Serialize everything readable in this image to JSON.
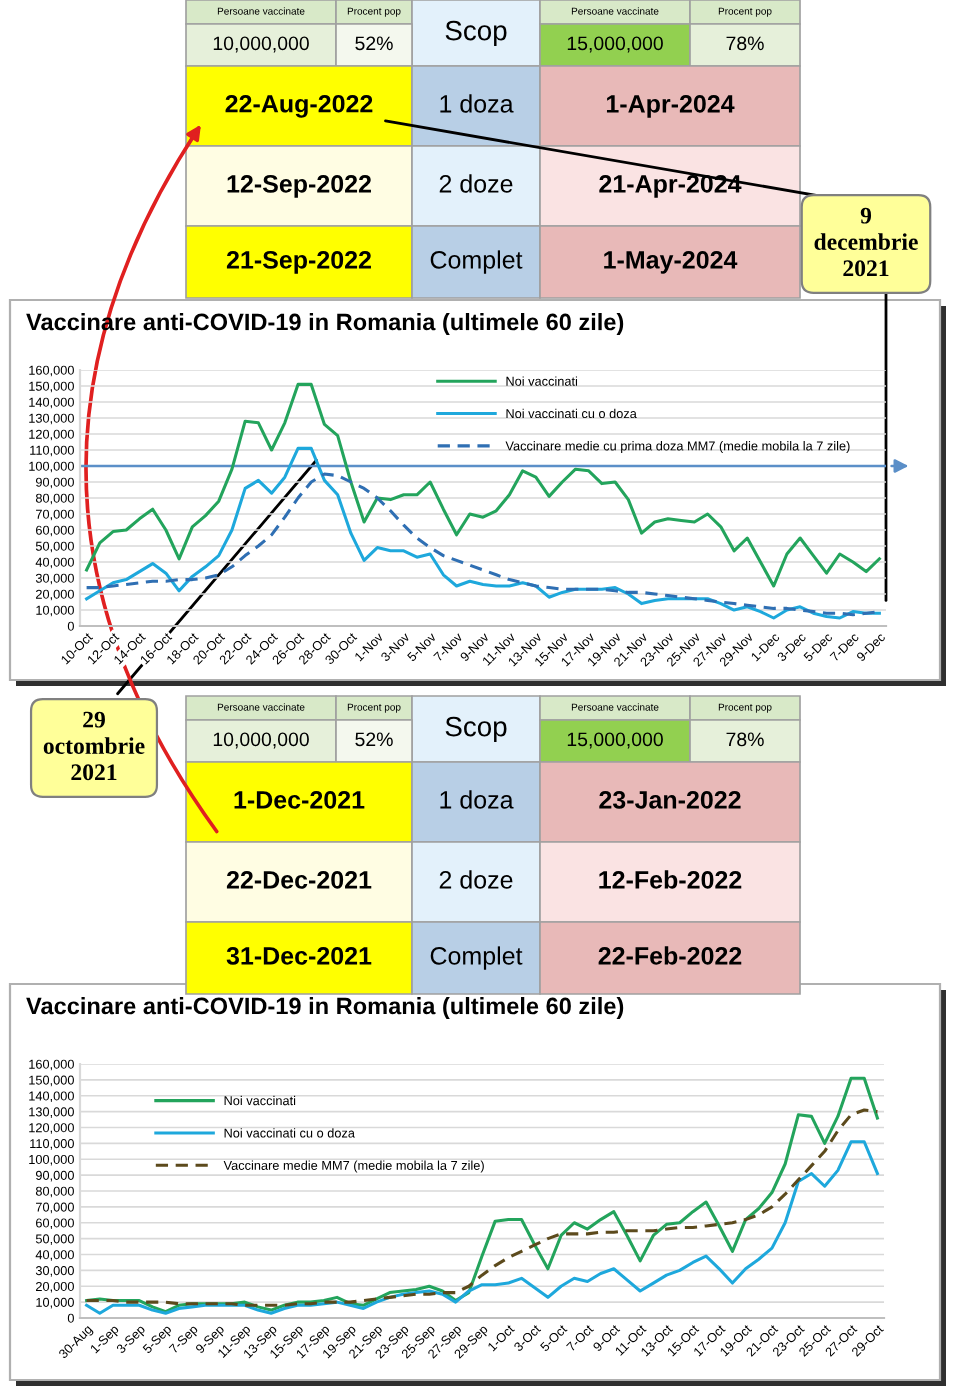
{
  "chart_data": [
    {
      "type": "other",
      "annotations": [
        "Persoane vaccinate",
        "Procent pop",
        "Scop",
        "Persoane vaccinate",
        "Procent pop",
        "10,000,000",
        "52%",
        "15,000,000",
        "78%",
        "22-Aug-2022",
        "1 doza",
        "1-Apr-2024",
        "12-Sep-2022",
        "2 doze",
        "21-Apr-2024",
        "21-Sep-2022",
        "Complet",
        "1-May-2024",
        "9\ndecembrie\n2021"
      ],
      "colors": [
        "#d8e9c8",
        "#d8e9c8",
        "#e3f1fb",
        "#d8e9c8",
        "#d8e9c8",
        "#e6f0da",
        "#f4f8ee",
        "#92d050",
        "#e6f0da",
        "#ffff00",
        "#b8cfe6",
        "#e8b9b8",
        "#fffde3",
        "#e3f1fb",
        "#fae3e3",
        "#ffff00",
        "#b8cfe6",
        "#e8b9b8",
        "#ffff99"
      ]
    },
    {
      "type": "line",
      "title": "Vaccinare anti-COVID-19 in Romania (ultimele 60 zile)",
      "categories": [
        "10-Oct",
        null,
        "12-Oct",
        null,
        "14-Oct",
        null,
        "16-Oct",
        null,
        "18-Oct",
        null,
        "20-Oct",
        null,
        "22-Oct",
        null,
        "24-Oct",
        null,
        "26-Oct",
        null,
        "28-Oct",
        null,
        "30-Oct",
        null,
        "1-Nov",
        null,
        "3-Nov",
        null,
        "5-Nov",
        null,
        "7-Nov",
        null,
        "9-Nov",
        null,
        "11-Nov",
        null,
        "13-Nov",
        null,
        "15-Nov",
        null,
        "17-Nov",
        null,
        "19-Nov",
        null,
        "21-Nov",
        null,
        "23-Nov",
        null,
        "25-Nov",
        null,
        "27-Nov",
        null,
        "29-Nov",
        null,
        "1-Dec",
        null,
        "3-Dec",
        null,
        "5-Dec",
        null,
        "7-Dec",
        null,
        "9-Dec"
      ],
      "series": [
        {
          "name": "Noi vaccinati",
          "color": "#23a45c",
          "values": [
            35000,
            52000,
            59000,
            60000,
            67000,
            73000,
            60000,
            42000,
            62000,
            69000,
            78000,
            98000,
            128000,
            127000,
            110000,
            127000,
            151000,
            151000,
            126000,
            119000,
            90000,
            65000,
            80000,
            79000,
            82000,
            82000,
            90000,
            73000,
            57000,
            70000,
            68000,
            72000,
            82000,
            97000,
            93000,
            81000,
            90000,
            98000,
            97000,
            89000,
            90000,
            79000,
            58000,
            65000,
            67000,
            66000,
            65000,
            70000,
            62000,
            47000,
            55000,
            40000,
            25000,
            45000,
            55000,
            44000,
            33000,
            45000,
            40000,
            34000,
            42000
          ]
        },
        {
          "name": "Noi vaccinati cu o doza",
          "color": "#1ea8dc",
          "values": [
            17000,
            22000,
            27000,
            29000,
            34000,
            39000,
            33000,
            22000,
            31000,
            37000,
            44000,
            60000,
            86000,
            91000,
            83000,
            93000,
            111000,
            111000,
            91000,
            82000,
            58000,
            41000,
            49000,
            47000,
            47000,
            43000,
            45000,
            32000,
            25000,
            28000,
            26000,
            25000,
            25000,
            27000,
            25000,
            18000,
            21000,
            23000,
            23000,
            23000,
            24000,
            20000,
            14000,
            16000,
            17000,
            17000,
            17000,
            17000,
            14000,
            10000,
            12000,
            9000,
            5000,
            10000,
            12000,
            8000,
            6000,
            5000,
            9000,
            8000,
            8000
          ]
        },
        {
          "name": "Vaccinare medie cu prima doza MM7 (medie mobila la 7 zile)",
          "color": "#2f6fb3",
          "line_style": "dashed",
          "values": [
            24000,
            24000,
            25000,
            26000,
            27000,
            28000,
            28000,
            29000,
            29000,
            30000,
            32000,
            37000,
            44000,
            50000,
            57000,
            68000,
            80000,
            90000,
            95000,
            94000,
            90000,
            86000,
            80000,
            72000,
            63000,
            55000,
            49000,
            44000,
            41000,
            38000,
            35000,
            32000,
            29000,
            27000,
            25000,
            24000,
            23000,
            23000,
            23000,
            23000,
            22000,
            21000,
            21000,
            20000,
            19000,
            18000,
            17000,
            16000,
            15000,
            14000,
            13000,
            12000,
            11000,
            11000,
            10000,
            9000,
            8000,
            8000,
            7000,
            8000,
            9000
          ]
        }
      ],
      "ylim": [
        0,
        160000
      ],
      "yticks": [
        0,
        {
          "value": 10000,
          "label": "10,000"
        },
        {
          "value": 20000,
          "label": "20,000"
        },
        {
          "value": 30000,
          "label": "30,000"
        },
        {
          "value": 40000,
          "label": "40,000"
        },
        {
          "value": 50000,
          "label": "50,000"
        },
        {
          "value": 60000,
          "label": "60,000"
        },
        {
          "value": 70000,
          "label": "70,000"
        },
        {
          "value": 80000,
          "label": "80,000"
        },
        {
          "value": 90000,
          "label": "90,000"
        },
        {
          "value": 100000,
          "label": "100,000"
        },
        {
          "value": 110000,
          "label": "110,000"
        },
        {
          "value": 120000,
          "label": "120,000"
        },
        {
          "value": 130000,
          "label": "130,000"
        },
        {
          "value": 140000,
          "label": "140,000"
        },
        {
          "value": 150000,
          "label": "150,000"
        },
        {
          "value": 160000,
          "label": "160,000"
        }
      ],
      "ref_lines": [
        {
          "axis": "y",
          "value": 100000,
          "color": "#5b8fc8"
        }
      ],
      "grid": "y",
      "legend": "top right",
      "line_style": "solid",
      "marker": "none"
    },
    {
      "type": "other",
      "annotations": [
        "Persoane vaccinate",
        "Procent pop",
        "Scop",
        "Persoane vaccinate",
        "Procent pop",
        "10,000,000",
        "52%",
        "15,000,000",
        "78%",
        "1-Dec-2021",
        "1 doza",
        "23-Jan-2022",
        "22-Dec-2021",
        "2 doze",
        "12-Feb-2022",
        "31-Dec-2021",
        "Complet",
        "22-Feb-2022",
        "29\noctombrie\n2021"
      ],
      "colors": [
        "#d8e9c8",
        "#d8e9c8",
        "#e3f1fb",
        "#d8e9c8",
        "#d8e9c8",
        "#e6f0da",
        "#f4f8ee",
        "#92d050",
        "#e6f0da",
        "#ffff00",
        "#b8cfe6",
        "#e8b9b8",
        "#fffde3",
        "#e3f1fb",
        "#fae3e3",
        "#ffff00",
        "#b8cfe6",
        "#e8b9b8",
        "#ffff99"
      ]
    },
    {
      "type": "line",
      "title": "Vaccinare anti-COVID-19 in Romania (ultimele 60 zile)",
      "categories": [
        "30-Aug",
        null,
        "1-Sep",
        null,
        "3-Sep",
        null,
        "5-Sep",
        null,
        "7-Sep",
        null,
        "9-Sep",
        null,
        "11-Sep",
        null,
        "13-Sep",
        null,
        "15-Sep",
        null,
        "17-Sep",
        null,
        "19-Sep",
        null,
        "21-Sep",
        null,
        "23-Sep",
        null,
        "25-Sep",
        null,
        "27-Sep",
        null,
        "29-Sep",
        null,
        "1-Oct",
        null,
        "3-Oct",
        null,
        "5-Oct",
        null,
        "7-Oct",
        null,
        "9-Oct",
        null,
        "11-Oct",
        null,
        "13-Oct",
        null,
        "15-Oct",
        null,
        "17-Oct",
        null,
        "19-Oct",
        null,
        "21-Oct",
        null,
        "23-Oct",
        null,
        "25-Oct",
        null,
        "27-Oct",
        null,
        "29-Oct"
      ],
      "series": [
        {
          "name": "Noi vaccinati",
          "color": "#23a45c",
          "values": [
            11000,
            12000,
            11000,
            11000,
            11000,
            7000,
            4000,
            8000,
            9000,
            9000,
            9000,
            9000,
            10000,
            7000,
            5000,
            8000,
            10000,
            10000,
            11000,
            13000,
            9000,
            8000,
            12000,
            16000,
            17000,
            18000,
            20000,
            17000,
            11000,
            16000,
            39000,
            61000,
            62000,
            62000,
            46000,
            31000,
            52000,
            60000,
            56000,
            62000,
            67000,
            52000,
            36000,
            52000,
            59000,
            60000,
            67000,
            73000,
            58000,
            42000,
            62000,
            69000,
            79000,
            97000,
            128000,
            127000,
            110000,
            127000,
            151000,
            151000,
            126000
          ]
        },
        {
          "name": "Noi vaccinati cu o doza",
          "color": "#1ea8dc",
          "values": [
            8000,
            3000,
            8000,
            8000,
            8000,
            5000,
            3000,
            6000,
            7000,
            8000,
            8000,
            8000,
            8000,
            5000,
            3000,
            6000,
            8000,
            8000,
            9000,
            10000,
            8000,
            6000,
            10000,
            13000,
            15000,
            16000,
            17000,
            15000,
            10000,
            17000,
            21000,
            21000,
            22000,
            25000,
            19000,
            13000,
            20000,
            25000,
            23000,
            28000,
            31000,
            24000,
            17000,
            22000,
            27000,
            30000,
            35000,
            39000,
            31000,
            22000,
            31000,
            37000,
            44000,
            60000,
            86000,
            91000,
            83000,
            93000,
            111000,
            111000,
            91000
          ]
        },
        {
          "name": "Vaccinare medie MM7 (medie mobila la 7 zile)",
          "color": "#5c4a1c",
          "line_style": "dashed",
          "values": [
            11000,
            11000,
            11000,
            10000,
            10000,
            10000,
            10000,
            9000,
            9000,
            9000,
            9000,
            9000,
            8000,
            8000,
            8000,
            8000,
            9000,
            9000,
            10000,
            10000,
            10000,
            11000,
            12000,
            13000,
            14000,
            15000,
            15000,
            16000,
            16000,
            20000,
            27000,
            33000,
            38000,
            42000,
            46000,
            50000,
            53000,
            53000,
            53000,
            54000,
            54000,
            55000,
            55000,
            55000,
            56000,
            57000,
            57000,
            58000,
            59000,
            60000,
            62000,
            65000,
            70000,
            78000,
            87000,
            96000,
            105000,
            118000,
            128000,
            131000,
            130000
          ]
        }
      ],
      "ylim": [
        0,
        160000
      ],
      "yticks": [
        0,
        {
          "value": 10000,
          "label": "10,000"
        },
        {
          "value": 20000,
          "label": "20,000"
        },
        {
          "value": 30000,
          "label": "30,000"
        },
        {
          "value": 40000,
          "label": "40,000"
        },
        {
          "value": 50000,
          "label": "50,000"
        },
        {
          "value": 60000,
          "label": "60,000"
        },
        {
          "value": 70000,
          "label": "70,000"
        },
        {
          "value": 80000,
          "label": "80,000"
        },
        {
          "value": 90000,
          "label": "90,000"
        },
        {
          "value": 100000,
          "label": "100,000"
        },
        {
          "value": 110000,
          "label": "110,000"
        },
        {
          "value": 120000,
          "label": "120,000"
        },
        {
          "value": 130000,
          "label": "130,000"
        },
        {
          "value": 140000,
          "label": "140,000"
        },
        {
          "value": 150000,
          "label": "150,000"
        },
        {
          "value": 160000,
          "label": "160,000"
        }
      ],
      "grid": "y",
      "legend": "top left",
      "line_style": "solid",
      "marker": "none"
    }
  ]
}
